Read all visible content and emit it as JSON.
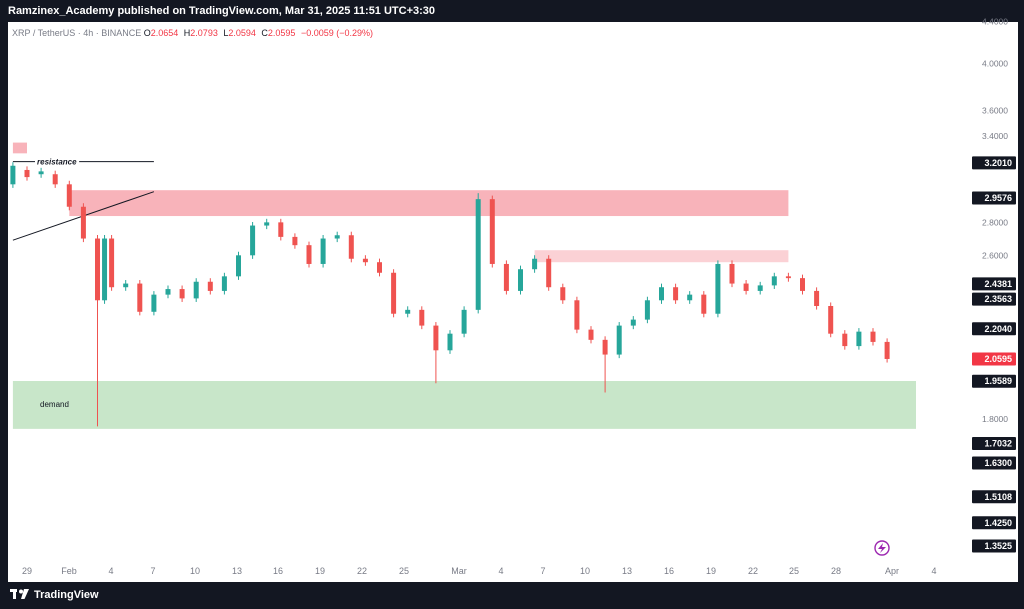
{
  "header": {
    "publisher_line": "Ramzinex_Academy published on TradingView.com, Mar 31, 2025 11:51 UTC+3:30"
  },
  "symbol": {
    "name": "XRP / TetherUS · 4h · BINANCE"
  },
  "ohlc": {
    "o_label": "O",
    "o": "2.0654",
    "h_label": "H",
    "h": "2.0793",
    "l_label": "L",
    "l": "2.0594",
    "c_label": "C",
    "c": "2.0595",
    "change": "−0.0059 (−0.29%)"
  },
  "footer": {
    "brand": "TradingView"
  },
  "colors": {
    "up": "#26a69a",
    "down": "#ef5350",
    "supply_zone": "#f8b3ba",
    "supply_zone_light": "#fbd1d5",
    "demand_zone": "#c8e6c9",
    "price_tag": "#f23645",
    "label_tag": "#131722"
  },
  "icons": {
    "replay": "lightning-bolt-icon",
    "brand": "tradingview-logo-icon"
  },
  "chart_data": {
    "type": "candlestick",
    "title": "XRP / TetherUS · 4h · BINANCE",
    "x_ticks": [
      "29",
      "Feb",
      "4",
      "7",
      "10",
      "13",
      "16",
      "19",
      "22",
      "25",
      "Mar",
      "4",
      "7",
      "10",
      "13",
      "16",
      "19",
      "22",
      "25",
      "28",
      "Apr",
      "4"
    ],
    "y_axis_ticks": [
      "4.4000",
      "4.0000",
      "3.6000",
      "3.4000",
      "2.8000",
      "2.6000",
      "1.8000"
    ],
    "ylim": [
      1.3525,
      4.4
    ],
    "scale": "log",
    "price_labels": [
      "3.2010",
      "2.9576",
      "2.4381",
      "2.3563",
      "2.2040",
      "2.0595",
      "1.9589",
      "1.7032",
      "1.6300",
      "1.5108",
      "1.4250",
      "1.3525"
    ],
    "last_price": "2.0595",
    "zone_labels": {
      "resistance": "resistance",
      "demand": "demand"
    },
    "zones": [
      {
        "kind": "supply",
        "from": "Jan 28",
        "to": "Jan 29",
        "price_low": 3.27,
        "price_high": 3.35
      },
      {
        "kind": "supply",
        "from": "Feb 1",
        "to": "Mar 24",
        "price_low": 2.84,
        "price_high": 3.01
      },
      {
        "kind": "supply-light",
        "from": "Mar 6",
        "to": "Mar 24",
        "price_low": 2.56,
        "price_high": 2.63
      },
      {
        "kind": "demand",
        "from": "Jan 28",
        "to": "Apr 2",
        "price_low": 1.76,
        "price_high": 1.96
      }
    ],
    "lines": [
      {
        "name": "resistance",
        "from": [
          "Jan 28",
          3.21
        ],
        "to": [
          "Feb 7",
          3.21
        ]
      },
      {
        "name": "trendline",
        "from": [
          "Jan 28",
          2.69
        ],
        "to": [
          "Feb 7",
          3.0
        ]
      }
    ],
    "series": [
      {
        "name": "XRPUSDT",
        "points": [
          [
            "Jan 28",
            3.05,
            3.18
          ],
          [
            "Jan 29",
            3.15,
            3.1
          ],
          [
            "Jan 30",
            3.12,
            3.14
          ],
          [
            "Jan 31",
            3.12,
            3.05
          ],
          [
            "Feb 1",
            3.05,
            2.9
          ],
          [
            "Feb 2",
            2.9,
            2.7
          ],
          [
            "Feb 3",
            2.7,
            2.35
          ],
          [
            "Feb 3 12:00",
            2.35,
            2.7
          ],
          [
            "Feb 4",
            2.7,
            2.42
          ],
          [
            "Feb 5",
            2.42,
            2.44
          ],
          [
            "Feb 6",
            2.44,
            2.29
          ],
          [
            "Feb 7",
            2.29,
            2.38
          ],
          [
            "Feb 8",
            2.38,
            2.41
          ],
          [
            "Feb 9",
            2.41,
            2.36
          ],
          [
            "Feb 10",
            2.36,
            2.45
          ],
          [
            "Feb 11",
            2.45,
            2.4
          ],
          [
            "Feb 12",
            2.4,
            2.48
          ],
          [
            "Feb 13",
            2.48,
            2.6
          ],
          [
            "Feb 14",
            2.6,
            2.78
          ],
          [
            "Feb 15",
            2.78,
            2.8
          ],
          [
            "Feb 16",
            2.8,
            2.71
          ],
          [
            "Feb 17",
            2.71,
            2.66
          ],
          [
            "Feb 18",
            2.66,
            2.55
          ],
          [
            "Feb 19",
            2.55,
            2.7
          ],
          [
            "Feb 20",
            2.7,
            2.72
          ],
          [
            "Feb 21",
            2.72,
            2.58
          ],
          [
            "Feb 22",
            2.58,
            2.56
          ],
          [
            "Feb 23",
            2.56,
            2.5
          ],
          [
            "Feb 24",
            2.5,
            2.28
          ],
          [
            "Feb 25",
            2.28,
            2.3
          ],
          [
            "Feb 26",
            2.3,
            2.22
          ],
          [
            "Feb 27",
            2.22,
            2.1
          ],
          [
            "Feb 28",
            2.1,
            2.18
          ],
          [
            "Mar 1",
            2.18,
            2.3
          ],
          [
            "Mar 2",
            2.3,
            2.95
          ],
          [
            "Mar 3",
            2.95,
            2.55
          ],
          [
            "Mar 4",
            2.55,
            2.4
          ],
          [
            "Mar 5",
            2.4,
            2.52
          ],
          [
            "Mar 6",
            2.52,
            2.58
          ],
          [
            "Mar 7",
            2.58,
            2.42
          ],
          [
            "Mar 8",
            2.42,
            2.35
          ],
          [
            "Mar 9",
            2.35,
            2.2
          ],
          [
            "Mar 10",
            2.2,
            2.15
          ],
          [
            "Mar 11",
            2.15,
            2.08
          ],
          [
            "Mar 12",
            2.08,
            2.22
          ],
          [
            "Mar 13",
            2.22,
            2.25
          ],
          [
            "Mar 14",
            2.25,
            2.35
          ],
          [
            "Mar 15",
            2.35,
            2.42
          ],
          [
            "Mar 16",
            2.42,
            2.35
          ],
          [
            "Mar 17",
            2.35,
            2.38
          ],
          [
            "Mar 18",
            2.38,
            2.28
          ],
          [
            "Mar 19",
            2.28,
            2.55
          ],
          [
            "Mar 20",
            2.55,
            2.44
          ],
          [
            "Mar 21",
            2.44,
            2.4
          ],
          [
            "Mar 22",
            2.4,
            2.43
          ],
          [
            "Mar 23",
            2.43,
            2.48
          ],
          [
            "Mar 24",
            2.48,
            2.47
          ],
          [
            "Mar 25",
            2.47,
            2.4
          ],
          [
            "Mar 26",
            2.4,
            2.32
          ],
          [
            "Mar 27",
            2.32,
            2.18
          ],
          [
            "Mar 28",
            2.18,
            2.12
          ],
          [
            "Mar 29",
            2.12,
            2.19
          ],
          [
            "Mar 30",
            2.19,
            2.14
          ],
          [
            "Mar 31",
            2.14,
            2.0595
          ]
        ]
      }
    ]
  }
}
